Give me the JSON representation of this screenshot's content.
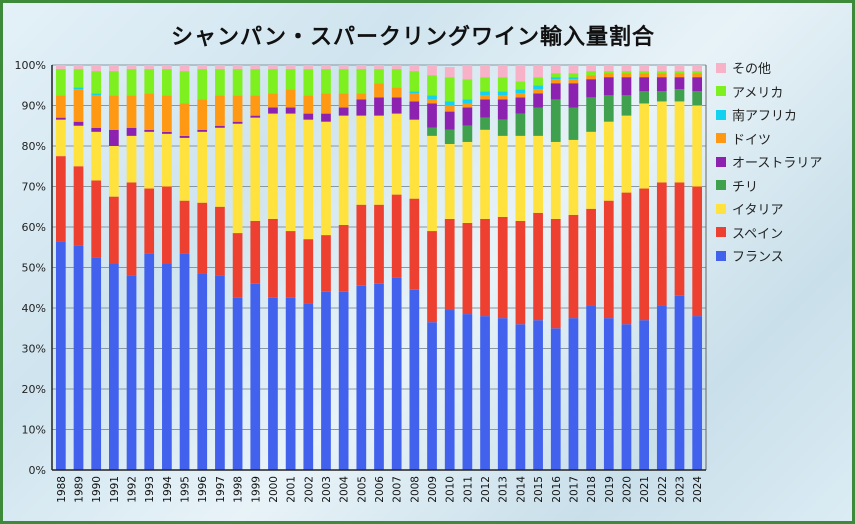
{
  "chart_data": {
    "type": "bar",
    "stacked": true,
    "title": "シャンパン・スパークリングワイン輸入量割合",
    "xlabel": "",
    "ylabel": "",
    "ylim": [
      0,
      100
    ],
    "y_ticks": [
      "0%",
      "10%",
      "20%",
      "30%",
      "40%",
      "50%",
      "60%",
      "70%",
      "80%",
      "90%",
      "100%"
    ],
    "grid": true,
    "legend_position": "right",
    "categories": [
      "1988",
      "1989",
      "1990",
      "1991",
      "1992",
      "1993",
      "1994",
      "1995",
      "1996",
      "1997",
      "1998",
      "1999",
      "2000",
      "2001",
      "2002",
      "2003",
      "2004",
      "2005",
      "2006",
      "2007",
      "2008",
      "2009",
      "2010",
      "2011",
      "2012",
      "2013",
      "2014",
      "2015",
      "2016",
      "2017",
      "2018",
      "2019",
      "2020",
      "2021",
      "2022",
      "2023",
      "2024"
    ],
    "series": [
      {
        "name": "フランス",
        "color": "#4262ee",
        "values": [
          56.5,
          55.5,
          52.5,
          51,
          48,
          53.5,
          51,
          53.5,
          48.5,
          48,
          42.5,
          46,
          42.5,
          42.5,
          41,
          44,
          44,
          45.5,
          46,
          47.5,
          44.5,
          36.5,
          39.5,
          38.5,
          38,
          37.5,
          36,
          37,
          35,
          37.5,
          40.5,
          37.5,
          36,
          37,
          40.5,
          43,
          38
        ]
      },
      {
        "name": "スペイン",
        "color": "#ee4030",
        "values": [
          21,
          19.5,
          19,
          16.5,
          23,
          16,
          19,
          13,
          17.5,
          17,
          16,
          15.5,
          19.5,
          16.5,
          16,
          14,
          16.5,
          20,
          19.5,
          20.5,
          22.5,
          22.5,
          22.5,
          22.5,
          24,
          25,
          25.5,
          26.5,
          27,
          25.5,
          24,
          29,
          32.5,
          32.5,
          30.5,
          28,
          32
        ]
      },
      {
        "name": "イタリア",
        "color": "#ffe23e",
        "values": [
          9,
          10,
          12,
          12.5,
          11.5,
          14,
          13,
          15.5,
          17.5,
          19.5,
          27,
          25.5,
          26,
          29,
          29.5,
          28,
          27,
          22,
          22,
          20,
          19.5,
          23.5,
          18.5,
          20,
          22,
          20,
          21,
          19,
          19,
          18.5,
          19,
          19.5,
          19,
          21,
          20,
          20,
          20
        ]
      },
      {
        "name": "チリ",
        "color": "#3fa04e",
        "values": [
          0,
          0,
          0,
          0,
          0,
          0,
          0,
          0,
          0,
          0,
          0,
          0,
          0,
          0,
          0,
          0,
          0,
          0,
          0,
          0,
          0,
          2,
          3.5,
          4,
          3,
          4,
          5.5,
          7,
          10.5,
          8,
          8.5,
          6.5,
          5,
          3,
          2.5,
          3,
          3.5
        ]
      },
      {
        "name": "オーストラリア",
        "color": "#8e22b0",
        "values": [
          0.5,
          1,
          1,
          4,
          2,
          0.5,
          0.5,
          0.5,
          0.5,
          0.5,
          0.5,
          0.5,
          1.5,
          1.5,
          1.5,
          2,
          2,
          4,
          4.5,
          4,
          4.5,
          6,
          4.5,
          4.5,
          4.5,
          5,
          4,
          3.5,
          4,
          6,
          4.5,
          4.5,
          4.5,
          3.5,
          3.5,
          3,
          3.5
        ]
      },
      {
        "name": "ドイツ",
        "color": "#ff9812",
        "values": [
          5.5,
          8,
          8,
          8.5,
          8,
          9,
          9,
          8,
          7.5,
          7.5,
          6.5,
          5,
          3.5,
          4.5,
          4.5,
          5,
          3.5,
          1.5,
          3.5,
          2.5,
          2,
          1,
          1.5,
          1,
          1,
          1,
          1,
          1,
          1,
          1,
          1,
          1,
          1,
          1,
          1,
          1,
          1
        ]
      },
      {
        "name": "南アフリカ",
        "color": "#12d2f0",
        "values": [
          0,
          0.5,
          0.5,
          0,
          0,
          0,
          0,
          0,
          0,
          0,
          0,
          0,
          0,
          0,
          0,
          0,
          0,
          0,
          0,
          0,
          0.5,
          1,
          1,
          1,
          1,
          1,
          1,
          1,
          0.5,
          0.5,
          0,
          0,
          0,
          0,
          0,
          0,
          0
        ]
      },
      {
        "name": "アメリカ",
        "color": "#7ef020",
        "values": [
          6.5,
          4.5,
          5.5,
          6,
          6.5,
          6,
          6.5,
          8,
          7.5,
          6.5,
          6.5,
          6.5,
          6,
          5,
          6.5,
          6,
          6,
          6,
          3.5,
          4.5,
          5,
          5,
          6,
          5,
          3.5,
          3.5,
          2,
          2,
          1,
          1,
          1,
          0.5,
          0.5,
          0.5,
          0.5,
          0.5,
          0.5
        ]
      },
      {
        "name": "その他",
        "color": "#f7b2c8",
        "values": [
          1,
          1,
          1.5,
          1.5,
          1,
          1,
          1,
          1.5,
          1,
          1,
          1,
          1,
          1,
          1,
          1,
          1,
          1,
          1,
          1,
          1,
          1.5,
          2.5,
          2.5,
          3.5,
          3,
          3,
          4,
          3,
          2,
          2,
          1.5,
          1.5,
          1.5,
          1.5,
          1.5,
          1.5,
          1.5
        ]
      }
    ]
  }
}
